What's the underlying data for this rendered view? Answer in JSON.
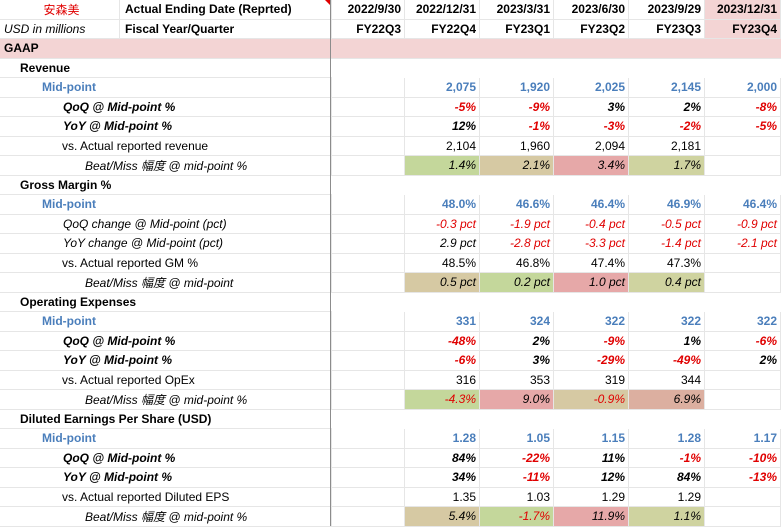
{
  "header": {
    "company": "安森美",
    "units": "USD in millions",
    "row1_label": "Actual Ending Date (Reprted)",
    "row2_label": "Fiscal Year/Quarter",
    "dates": [
      "2022/9/30",
      "2022/12/31",
      "2023/3/31",
      "2023/6/30",
      "2023/9/29",
      "2023/12/31"
    ],
    "quarters": [
      "FY22Q3",
      "FY22Q4",
      "FY23Q1",
      "FY23Q2",
      "FY23Q3",
      "FY23Q4"
    ]
  },
  "section": "GAAP",
  "rows": [
    {
      "label": "Revenue",
      "style": "group"
    },
    {
      "label": "Mid-point",
      "style": "mid",
      "values": [
        "",
        "2,075",
        "1,920",
        "2,025",
        "2,145",
        "2,000"
      ]
    },
    {
      "label": "QoQ @ Mid-point %",
      "style": "pct-bold",
      "values": [
        "",
        "-5%",
        "-9%",
        "3%",
        "2%",
        "-8%"
      ]
    },
    {
      "label": "YoY @ Mid-point %",
      "style": "pct-bold",
      "values": [
        "",
        "12%",
        "-1%",
        "-3%",
        "-2%",
        "-5%"
      ]
    },
    {
      "label": "vs. Actual reported revenue",
      "style": "actual",
      "values": [
        "",
        "2,104",
        "1,960",
        "2,094",
        "2,181",
        ""
      ]
    },
    {
      "label": "Beat/Miss 幅度 @ mid-point %",
      "style": "beat",
      "values": [
        "",
        "1.4%",
        "2.1%",
        "3.4%",
        "1.7%",
        ""
      ],
      "fills": [
        "",
        "green",
        "tan",
        "pink",
        "olive",
        ""
      ]
    },
    {
      "label": "Gross Margin %",
      "style": "group"
    },
    {
      "label": "Mid-point",
      "style": "mid",
      "values": [
        "",
        "48.0%",
        "46.6%",
        "46.4%",
        "46.9%",
        "46.4%"
      ]
    },
    {
      "label": "QoQ change @ Mid-point (pct)",
      "style": "pct-ital",
      "values": [
        "",
        "-0.3 pct",
        "-1.9 pct",
        "-0.4 pct",
        "-0.5 pct",
        "-0.9 pct"
      ]
    },
    {
      "label": "YoY change @ Mid-point (pct)",
      "style": "pct-ital",
      "values": [
        "",
        "2.9 pct",
        "-2.8 pct",
        "-3.3 pct",
        "-1.4 pct",
        "-2.1 pct"
      ]
    },
    {
      "label": "vs. Actual reported GM %",
      "style": "actual",
      "values": [
        "",
        "48.5%",
        "46.8%",
        "47.4%",
        "47.3%",
        ""
      ]
    },
    {
      "label": "Beat/Miss 幅度 @ mid-point",
      "style": "beat",
      "values": [
        "",
        "0.5 pct",
        "0.2 pct",
        "1.0 pct",
        "0.4 pct",
        ""
      ],
      "fills": [
        "",
        "tan",
        "green",
        "pink",
        "olive",
        ""
      ]
    },
    {
      "label": "Operating Expenses",
      "style": "group"
    },
    {
      "label": "Mid-point",
      "style": "mid",
      "values": [
        "",
        "331",
        "324",
        "322",
        "322",
        "322"
      ]
    },
    {
      "label": "QoQ @ Mid-point %",
      "style": "pct-bold",
      "values": [
        "",
        "-48%",
        "2%",
        "-9%",
        "1%",
        "-6%"
      ]
    },
    {
      "label": "YoY @ Mid-point %",
      "style": "pct-bold",
      "values": [
        "",
        "-6%",
        "3%",
        "-29%",
        "-49%",
        "2%"
      ]
    },
    {
      "label": "vs. Actual reported OpEx",
      "style": "actual",
      "values": [
        "",
        "316",
        "353",
        "319",
        "344",
        ""
      ]
    },
    {
      "label": "Beat/Miss 幅度 @ mid-point %",
      "style": "beat",
      "values": [
        "",
        "-4.3%",
        "9.0%",
        "-0.9%",
        "6.9%",
        ""
      ],
      "fills": [
        "",
        "green",
        "pink",
        "tan",
        "rose",
        ""
      ]
    },
    {
      "label": "Diluted Earnings Per Share (USD)",
      "style": "group"
    },
    {
      "label": "Mid-point",
      "style": "mid",
      "values": [
        "",
        "1.28",
        "1.05",
        "1.15",
        "1.28",
        "1.17"
      ]
    },
    {
      "label": "QoQ @ Mid-point %",
      "style": "pct-bold",
      "values": [
        "",
        "84%",
        "-22%",
        "11%",
        "-1%",
        "-10%"
      ]
    },
    {
      "label": "YoY @ Mid-point %",
      "style": "pct-bold",
      "values": [
        "",
        "34%",
        "-11%",
        "12%",
        "84%",
        "-13%"
      ]
    },
    {
      "label": "vs. Actual reported Diluted EPS",
      "style": "actual",
      "values": [
        "",
        "1.35",
        "1.03",
        "1.29",
        "1.29",
        ""
      ]
    },
    {
      "label": "Beat/Miss 幅度 @ mid-point %",
      "style": "beat",
      "values": [
        "",
        "5.4%",
        "-1.7%",
        "11.9%",
        "1.1%",
        ""
      ],
      "fills": [
        "",
        "tan",
        "green",
        "pink",
        "olive",
        ""
      ]
    }
  ],
  "fill_colors": {
    "green": "#c4d79b",
    "tan": "#d6c9a3",
    "pink": "#e6a8a8",
    "olive": "#cfd3a0",
    "rose": "#dcafa0"
  }
}
